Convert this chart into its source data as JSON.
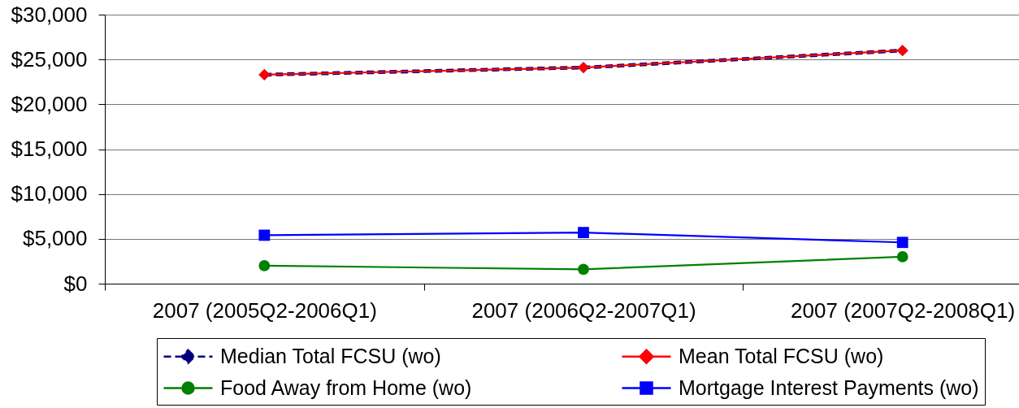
{
  "chart_data": {
    "type": "line",
    "categories": [
      "2007 (2005Q2-2006Q1)",
      "2007 (2006Q2-2007Q1)",
      "2007 (2007Q2-2008Q1)"
    ],
    "series": [
      {
        "name": "Median Total FCSU (wo)",
        "color": "#000080",
        "values": [
          23300,
          24100,
          26000
        ],
        "marker": "diamond",
        "line_style": "dashed"
      },
      {
        "name": "Mean Total FCSU (wo)",
        "color": "#ff0000",
        "values": [
          23300,
          24100,
          26000
        ],
        "marker": "diamond",
        "line_style": "solid"
      },
      {
        "name": "Food Away from Home (wo)",
        "color": "#008000",
        "values": [
          2000,
          1600,
          3000
        ],
        "marker": "circle",
        "line_style": "solid"
      },
      {
        "name": "Mortgage Interest Payments (wo)",
        "color": "#0000ff",
        "values": [
          5400,
          5700,
          4600
        ],
        "marker": "square",
        "line_style": "solid"
      }
    ],
    "ylim": [
      0,
      30000
    ],
    "yticks": [
      {
        "value": 0,
        "label": "$0"
      },
      {
        "value": 5000,
        "label": "$5,000"
      },
      {
        "value": 10000,
        "label": "$10,000"
      },
      {
        "value": 15000,
        "label": "$15,000"
      },
      {
        "value": 20000,
        "label": "$20,000"
      },
      {
        "value": 25000,
        "label": "$25,000"
      },
      {
        "value": 30000,
        "label": "$30,000"
      }
    ],
    "grid": "y",
    "legend": "bottom"
  }
}
